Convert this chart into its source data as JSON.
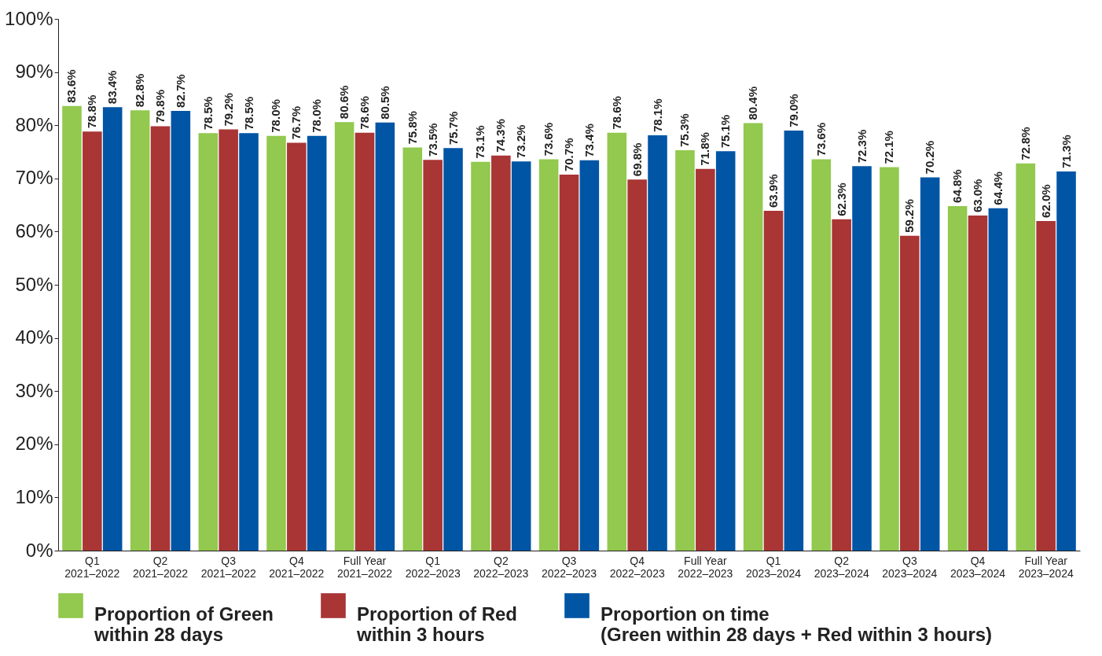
{
  "chart_data": {
    "type": "bar",
    "categories": [
      "Q1\n2021–2022",
      "Q2\n2021–2022",
      "Q3\n2021–2022",
      "Q4\n2021–2022",
      "Full Year\n2021–2022",
      "Q1\n2022–2023",
      "Q2\n2022–2023",
      "Q3\n2022–2023",
      "Q4\n2022–2023",
      "Full Year\n2022–2023",
      "Q1\n2023–2024",
      "Q2\n2023–2024",
      "Q3\n2023–2024",
      "Q4\n2023–2024",
      "Full Year\n2023–2024"
    ],
    "series": [
      {
        "name": "Proportion of Green\nwithin 28 days",
        "color": "#92c94e",
        "values": [
          83.6,
          82.8,
          78.5,
          78.0,
          80.6,
          75.8,
          73.1,
          73.6,
          78.6,
          75.3,
          80.4,
          73.6,
          72.1,
          64.8,
          72.8
        ],
        "value_labels": [
          "83.6%",
          "82.8%",
          "78.5%",
          "78.0%",
          "80.6%",
          "75.8%",
          "73.1%",
          "73.6%",
          "78.6%",
          "75.3%",
          "80.4%",
          "73.6%",
          "72.1%",
          "64.8%",
          "72.8%"
        ]
      },
      {
        "name": "Proportion of Red\nwithin 3 hours",
        "color": "#a93535",
        "values": [
          78.8,
          79.8,
          79.2,
          76.7,
          78.6,
          73.5,
          74.3,
          70.7,
          69.8,
          71.8,
          63.9,
          62.3,
          59.2,
          63.0,
          62.0
        ],
        "value_labels": [
          "78.8%",
          "79.8%",
          "79.2%",
          "76.7%",
          "78.6%",
          "73.5%",
          "74.3%",
          "70.7%",
          "69.8%",
          "71.8%",
          "63.9%",
          "62.3%",
          "59.2%",
          "63.0%",
          "62.0%"
        ]
      },
      {
        "name": "Proportion on time\n(Green within 28 days + Red within 3 hours)",
        "color": "#0055a5",
        "values": [
          83.4,
          82.7,
          78.5,
          78.0,
          80.5,
          75.7,
          73.2,
          73.4,
          78.1,
          75.1,
          79.0,
          72.3,
          70.2,
          64.4,
          71.3
        ],
        "value_labels": [
          "83.4%",
          "82.7%",
          "78.5%",
          "78.0%",
          "80.5%",
          "75.7%",
          "73.2%",
          "73.4%",
          "78.1%",
          "75.1%",
          "79.0%",
          "72.3%",
          "70.2%",
          "64.4%",
          "71.3%"
        ]
      }
    ],
    "ylim": [
      0,
      100
    ],
    "yticks": [
      {
        "value": 0,
        "label": "0%"
      },
      {
        "value": 10,
        "label": "10%"
      },
      {
        "value": 20,
        "label": "20%"
      },
      {
        "value": 30,
        "label": "30%"
      },
      {
        "value": 40,
        "label": "40%"
      },
      {
        "value": 50,
        "label": "50%"
      },
      {
        "value": 60,
        "label": "60%"
      },
      {
        "value": 70,
        "label": "70%"
      },
      {
        "value": 80,
        "label": "80%"
      },
      {
        "value": 90,
        "label": "90%"
      },
      {
        "value": 100,
        "label": "100%"
      }
    ],
    "grid": false,
    "legend": "bottom"
  }
}
